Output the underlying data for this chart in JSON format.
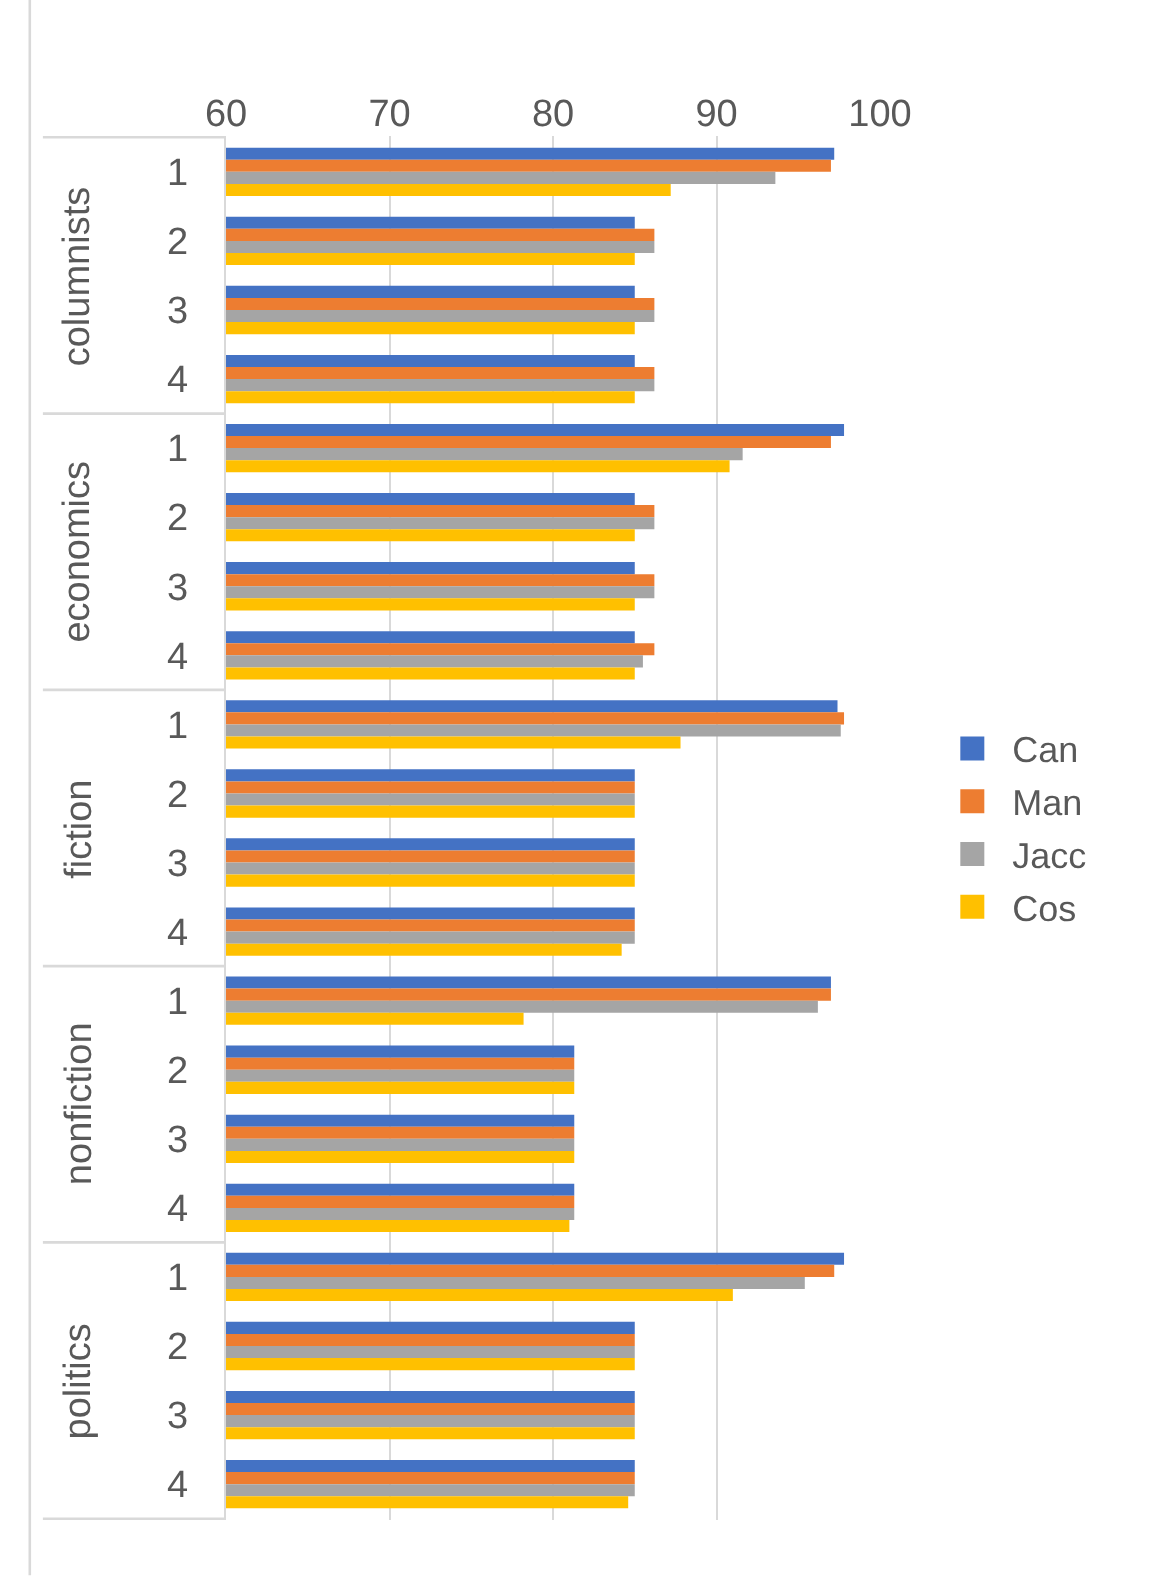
{
  "chart_data": {
    "type": "bar",
    "orientation": "horizontal",
    "categories": [
      "1",
      "2",
      "3",
      "4",
      "1",
      "2",
      "3",
      "4",
      "1",
      "2",
      "3",
      "4",
      "1",
      "2",
      "3",
      "4",
      "1",
      "2",
      "3",
      "4"
    ],
    "annotations": [
      "columnists",
      "economics",
      "fiction",
      "nonfiction",
      "politics"
    ],
    "xlim": [
      60,
      100
    ],
    "xticks": [
      60,
      70,
      80,
      90,
      100
    ],
    "grid": "x",
    "legend": "right",
    "series": [
      {
        "name": "Can",
        "color": "#4472c4",
        "values": [
          97.2,
          85,
          85,
          85,
          97.8,
          85,
          85,
          85,
          97.4,
          85,
          85,
          85,
          97,
          81.3,
          81.3,
          81.3,
          97.8,
          85,
          85,
          85
        ]
      },
      {
        "name": "Man",
        "color": "#ed7d31",
        "values": [
          97,
          86.2,
          86.2,
          86.2,
          97,
          86.2,
          86.2,
          86.2,
          97.8,
          85,
          85,
          85,
          97,
          81.3,
          81.3,
          81.3,
          97.2,
          85,
          85,
          85
        ]
      },
      {
        "name": "Jacc",
        "color": "#a5a5a5",
        "values": [
          93.6,
          86.2,
          86.2,
          86.2,
          91.6,
          86.2,
          86.2,
          85.5,
          97.6,
          85,
          85,
          85,
          96.2,
          81.3,
          81.3,
          81.3,
          95.4,
          85,
          85,
          85
        ]
      },
      {
        "name": "Cos",
        "color": "#ffc000",
        "values": [
          87.2,
          85,
          85,
          85,
          90.8,
          85,
          85,
          85,
          87.8,
          85,
          85,
          84.2,
          78.2,
          81.3,
          81.3,
          81,
          91,
          85,
          85,
          84.6
        ]
      }
    ]
  }
}
